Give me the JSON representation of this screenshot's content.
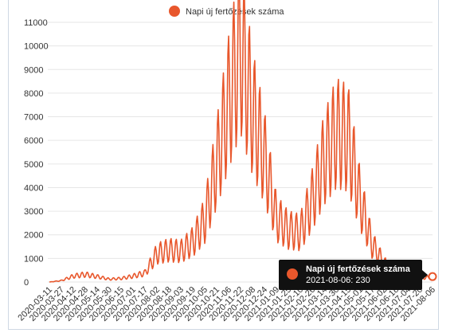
{
  "chart_data": {
    "type": "line",
    "series_name": "Napi új fertőzések száma",
    "color": "#e8572c",
    "ylim": [
      0,
      11000
    ],
    "y_ticks": [
      0,
      1000,
      2000,
      3000,
      4000,
      5000,
      6000,
      7000,
      8000,
      9000,
      10000,
      11000
    ],
    "x_tick_labels": [
      "2020-03-11",
      "2020-03-27",
      "2020-04-12",
      "2020-04-28",
      "2020-05-14",
      "2020-05-30",
      "2020-06-15",
      "2020-07-01",
      "2020-07-17",
      "2020-08-02",
      "2020-08-18",
      "2020-09-03",
      "2020-09-19",
      "2020-10-05",
      "2020-10-21",
      "2020-11-06",
      "2020-11-22",
      "2020-12-08",
      "2020-12-24",
      "2021-01-09",
      "2021-01-25",
      "2021-02-10",
      "2021-02-26",
      "2021-03-14",
      "2021-03-30",
      "2021-04-15",
      "2021-05-01",
      "2021-05-17",
      "2021-06-02",
      "2021-06-18",
      "2021-07-04",
      "2021-07-20",
      "2021-08-06"
    ],
    "grid": true,
    "legend_position": "top-center",
    "profile_points": [
      {
        "x": "2020-03-11",
        "y": 0
      },
      {
        "x": "2020-03-27",
        "y": 60
      },
      {
        "x": "2020-04-12",
        "y": 250
      },
      {
        "x": "2020-04-28",
        "y": 320
      },
      {
        "x": "2020-05-14",
        "y": 230
      },
      {
        "x": "2020-05-30",
        "y": 120
      },
      {
        "x": "2020-06-15",
        "y": 150
      },
      {
        "x": "2020-07-01",
        "y": 250
      },
      {
        "x": "2020-07-17",
        "y": 380
      },
      {
        "x": "2020-08-02",
        "y": 1200
      },
      {
        "x": "2020-08-18",
        "y": 1350
      },
      {
        "x": "2020-09-03",
        "y": 1300
      },
      {
        "x": "2020-09-19",
        "y": 1700
      },
      {
        "x": "2020-10-05",
        "y": 2600
      },
      {
        "x": "2020-10-21",
        "y": 5000
      },
      {
        "x": "2020-11-06",
        "y": 7600
      },
      {
        "x": "2020-11-22",
        "y": 10000
      },
      {
        "x": "2020-12-08",
        "y": 7200
      },
      {
        "x": "2020-12-24",
        "y": 5300
      },
      {
        "x": "2021-01-09",
        "y": 2700
      },
      {
        "x": "2021-01-25",
        "y": 2200
      },
      {
        "x": "2021-02-10",
        "y": 2100
      },
      {
        "x": "2021-02-26",
        "y": 3500
      },
      {
        "x": "2021-03-14",
        "y": 5200
      },
      {
        "x": "2021-03-30",
        "y": 6300
      },
      {
        "x": "2021-04-15",
        "y": 6100
      },
      {
        "x": "2021-05-01",
        "y": 3500
      },
      {
        "x": "2021-05-17",
        "y": 1600
      },
      {
        "x": "2021-06-02",
        "y": 800
      },
      {
        "x": "2021-06-18",
        "y": 350
      },
      {
        "x": "2021-07-04",
        "y": 200
      },
      {
        "x": "2021-07-20",
        "y": 150
      },
      {
        "x": "2021-08-06",
        "y": 230
      }
    ],
    "tooltip": {
      "title": "Napi új fertőzések száma",
      "date_value": "2021-08-06: 230",
      "x": "2021-08-06",
      "y": 230
    }
  }
}
